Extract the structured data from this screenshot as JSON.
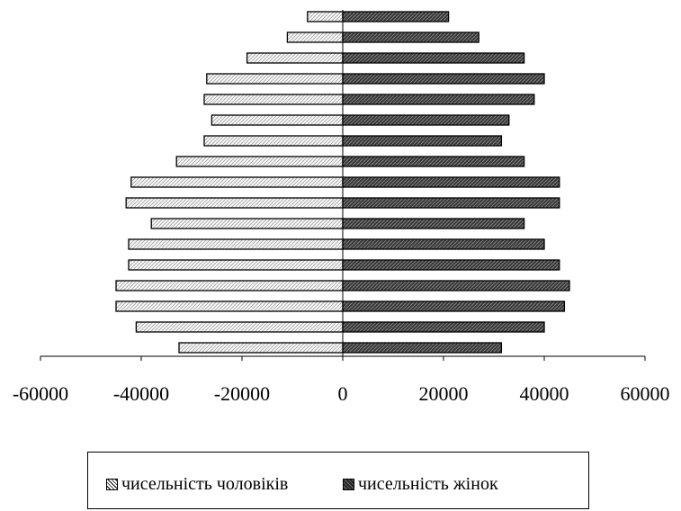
{
  "chart_data": {
    "type": "bar",
    "orientation": "horizontal",
    "layout": "population-pyramid",
    "xlim": [
      -60000,
      60000
    ],
    "x_ticks": [
      -60000,
      -40000,
      -20000,
      0,
      20000,
      40000,
      60000
    ],
    "x_tick_labels": [
      "-60000",
      "-40000",
      "-20000",
      "0",
      "20000",
      "40000",
      "60000"
    ],
    "grid": false,
    "legend_position": "bottom",
    "series": [
      {
        "name": "чисельність чоловіків",
        "color": "#e8e8e8",
        "values": [
          -7000,
          -11000,
          -19000,
          -27000,
          -27500,
          -26000,
          -27500,
          -33000,
          -42000,
          -43000,
          -38000,
          -42500,
          -42500,
          -45000,
          -45000,
          -41000,
          -32500
        ]
      },
      {
        "name": "чисельність жінок",
        "color": "#3a3a3a",
        "values": [
          21000,
          27000,
          36000,
          40000,
          38000,
          33000,
          31500,
          36000,
          43000,
          43000,
          36000,
          40000,
          43000,
          45000,
          44000,
          40000,
          31500
        ]
      }
    ]
  },
  "legend": {
    "men_label": "чисельність чоловіків",
    "women_label": "чисельність жінок"
  }
}
